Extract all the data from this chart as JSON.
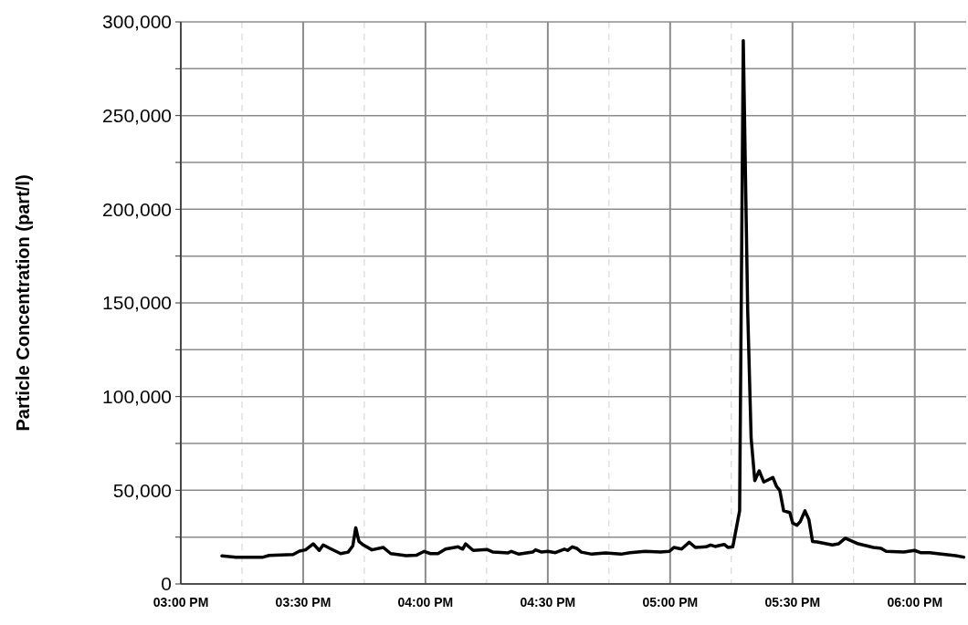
{
  "chart_data": {
    "type": "line",
    "ylabel": "Particle Concentration (part/l)",
    "x": [
      15.168,
      15.224,
      15.336,
      15.361,
      15.459,
      15.485,
      15.51,
      15.541,
      15.566,
      15.582,
      15.609,
      15.653,
      15.684,
      15.703,
      15.715,
      15.728,
      15.746,
      15.781,
      15.827,
      15.858,
      15.921,
      15.964,
      15.995,
      16.02,
      16.051,
      16.082,
      16.119,
      16.133,
      16.152,
      16.164,
      16.195,
      16.251,
      16.276,
      16.338,
      16.351,
      16.382,
      16.438,
      16.45,
      16.475,
      16.5,
      16.531,
      16.568,
      16.581,
      16.6,
      16.618,
      16.637,
      16.68,
      16.736,
      16.799,
      16.836,
      16.898,
      16.96,
      16.997,
      17.016,
      17.047,
      17.078,
      17.103,
      17.147,
      17.165,
      17.184,
      17.203,
      17.221,
      17.236,
      17.256,
      17.284,
      17.299,
      17.317,
      17.331,
      17.346,
      17.364,
      17.383,
      17.42,
      17.435,
      17.448,
      17.464,
      17.489,
      17.501,
      17.518,
      17.532,
      17.551,
      17.567,
      17.582,
      17.601,
      17.663,
      17.688,
      17.716,
      17.769,
      17.831,
      17.862,
      17.883,
      17.955,
      17.999,
      18.023,
      18.061,
      18.092,
      18.167,
      18.2
    ],
    "series": [
      {
        "color": "#000000",
        "values": [
          15000,
          14300,
          14300,
          15200,
          15700,
          17500,
          18200,
          21400,
          17900,
          20800,
          19000,
          16200,
          17000,
          20300,
          30000,
          22700,
          20800,
          18200,
          19500,
          16200,
          15100,
          15400,
          17400,
          16200,
          16200,
          18600,
          19500,
          19800,
          18600,
          21400,
          17900,
          18400,
          17000,
          16600,
          17400,
          15900,
          17000,
          18200,
          17000,
          17400,
          16700,
          18600,
          17900,
          19800,
          19000,
          17000,
          15900,
          16600,
          15900,
          16700,
          17400,
          17000,
          17400,
          19500,
          18600,
          22300,
          19500,
          19800,
          20800,
          20000,
          20600,
          21100,
          19500,
          19800,
          39000,
          290000,
          146000,
          78000,
          55200,
          60400,
          54400,
          56800,
          52000,
          50000,
          39000,
          38100,
          32500,
          31300,
          33300,
          39000,
          34400,
          22700,
          22400,
          20800,
          21400,
          24400,
          21400,
          19500,
          19000,
          17400,
          17000,
          17900,
          16700,
          16700,
          16200,
          15100,
          14300
        ]
      }
    ],
    "xlim": [
      15,
      18.21
    ],
    "xticks": [
      {
        "value": 15,
        "label": "03:00 PM"
      },
      {
        "value": 15.25,
        "label": null
      },
      {
        "value": 15.5,
        "label": "03:30 PM"
      },
      {
        "value": 15.75,
        "label": null
      },
      {
        "value": 16,
        "label": "04:00 PM"
      },
      {
        "value": 16.25,
        "label": null
      },
      {
        "value": 16.5,
        "label": "04:30 PM"
      },
      {
        "value": 16.75,
        "label": null
      },
      {
        "value": 17,
        "label": "05:00 PM"
      },
      {
        "value": 17.25,
        "label": null
      },
      {
        "value": 17.5,
        "label": "05:30 PM"
      },
      {
        "value": 17.75,
        "label": null
      },
      {
        "value": 18,
        "label": "06:00 PM"
      }
    ],
    "ylim": [
      0,
      300000
    ],
    "yticks": [
      {
        "value": 0,
        "label": "0"
      },
      {
        "value": 25000,
        "label": null
      },
      {
        "value": 50000,
        "label": "50,000"
      },
      {
        "value": 75000,
        "label": null
      },
      {
        "value": 100000,
        "label": "100,000"
      },
      {
        "value": 125000,
        "label": null
      },
      {
        "value": 150000,
        "label": "150,000"
      },
      {
        "value": 175000,
        "label": null
      },
      {
        "value": 200000,
        "label": "200,000"
      },
      {
        "value": 225000,
        "label": null
      },
      {
        "value": 250000,
        "label": "250,000"
      },
      {
        "value": 275000,
        "label": null
      },
      {
        "value": 300000,
        "label": "300,000"
      }
    ],
    "grid": true,
    "marker": "none",
    "line_style": "solid"
  }
}
